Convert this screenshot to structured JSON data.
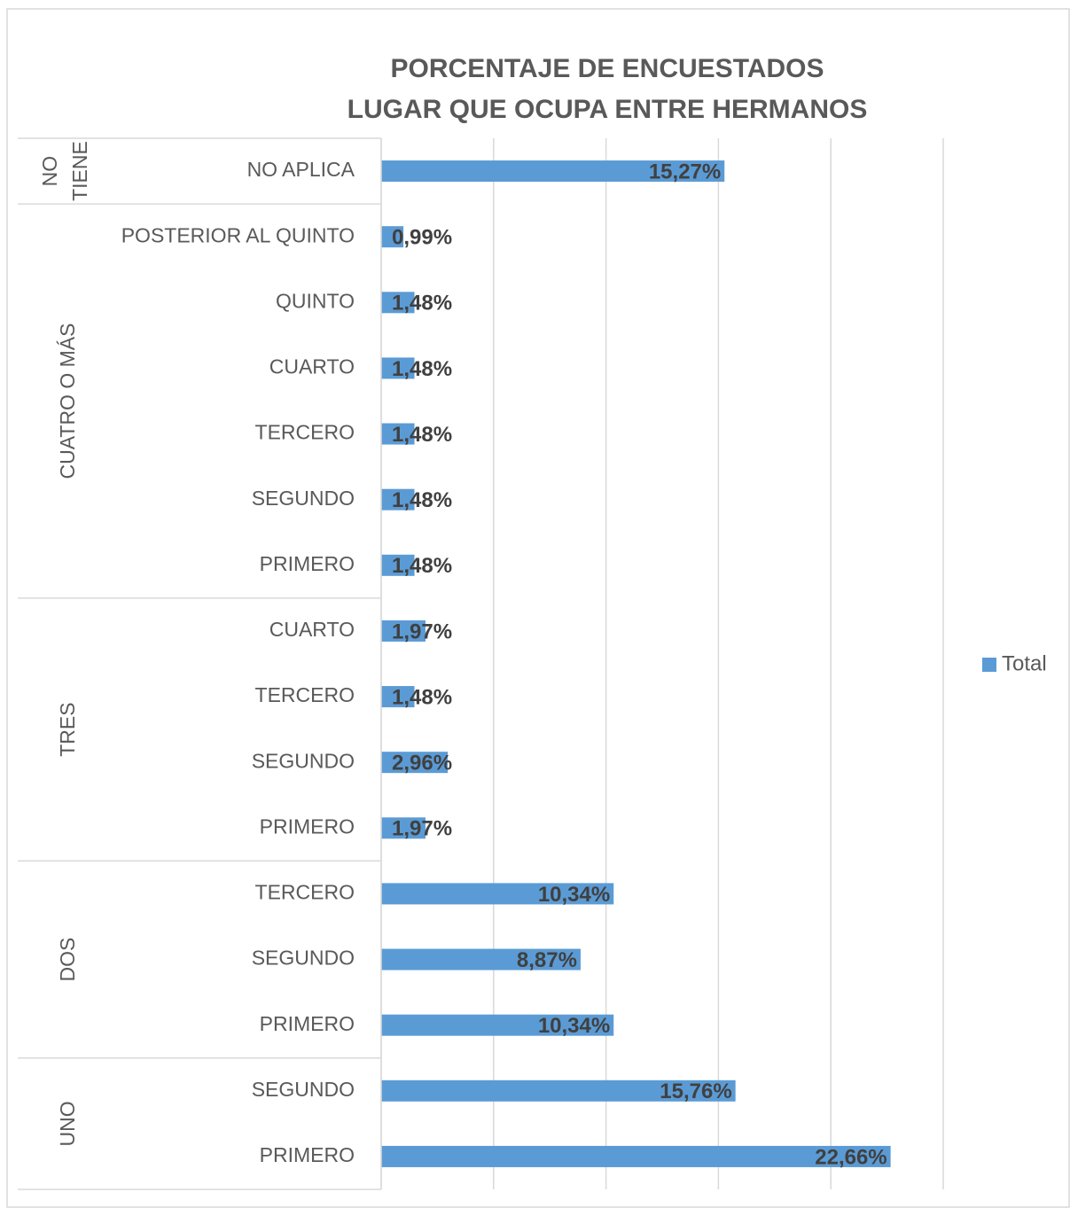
{
  "chart_data": {
    "type": "bar",
    "orientation": "horizontal",
    "title": [
      "PORCENTAJE DE ENCUESTADOS",
      "LUGAR QUE OCUPA ENTRE HERMANOS"
    ],
    "series": [
      {
        "name": "Total",
        "color": "#5b9bd5"
      }
    ],
    "groups": [
      {
        "name": "NO TIENE",
        "categories": [
          "NO APLICA"
        ],
        "values": [
          15.27
        ],
        "value_labels": [
          "15,27%"
        ]
      },
      {
        "name": "CUATRO O MÁS",
        "categories": [
          "POSTERIOR AL QUINTO",
          "QUINTO",
          "CUARTO",
          "TERCERO",
          "SEGUNDO",
          "PRIMERO"
        ],
        "values": [
          0.99,
          1.48,
          1.48,
          1.48,
          1.48,
          1.48
        ],
        "value_labels": [
          "0,99%",
          "1,48%",
          "1,48%",
          "1,48%",
          "1,48%",
          "1,48%"
        ]
      },
      {
        "name": "TRES",
        "categories": [
          "CUARTO",
          "TERCERO",
          "SEGUNDO",
          "PRIMERO"
        ],
        "values": [
          1.97,
          1.48,
          2.96,
          1.97
        ],
        "value_labels": [
          "1,97%",
          "1,48%",
          "2,96%",
          "1,97%"
        ]
      },
      {
        "name": "DOS",
        "categories": [
          "TERCERO",
          "SEGUNDO",
          "PRIMERO"
        ],
        "values": [
          10.34,
          8.87,
          10.34
        ],
        "value_labels": [
          "10,34%",
          "8,87%",
          "10,34%"
        ]
      },
      {
        "name": "UNO",
        "categories": [
          "SEGUNDO",
          "PRIMERO"
        ],
        "values": [
          15.76,
          22.66
        ],
        "value_labels": [
          "15,76%",
          "22,66%"
        ]
      }
    ],
    "xlim": [
      0,
      25
    ],
    "xticks": [
      0,
      5,
      10,
      15,
      20,
      25
    ],
    "grid": true,
    "legend": "right"
  }
}
